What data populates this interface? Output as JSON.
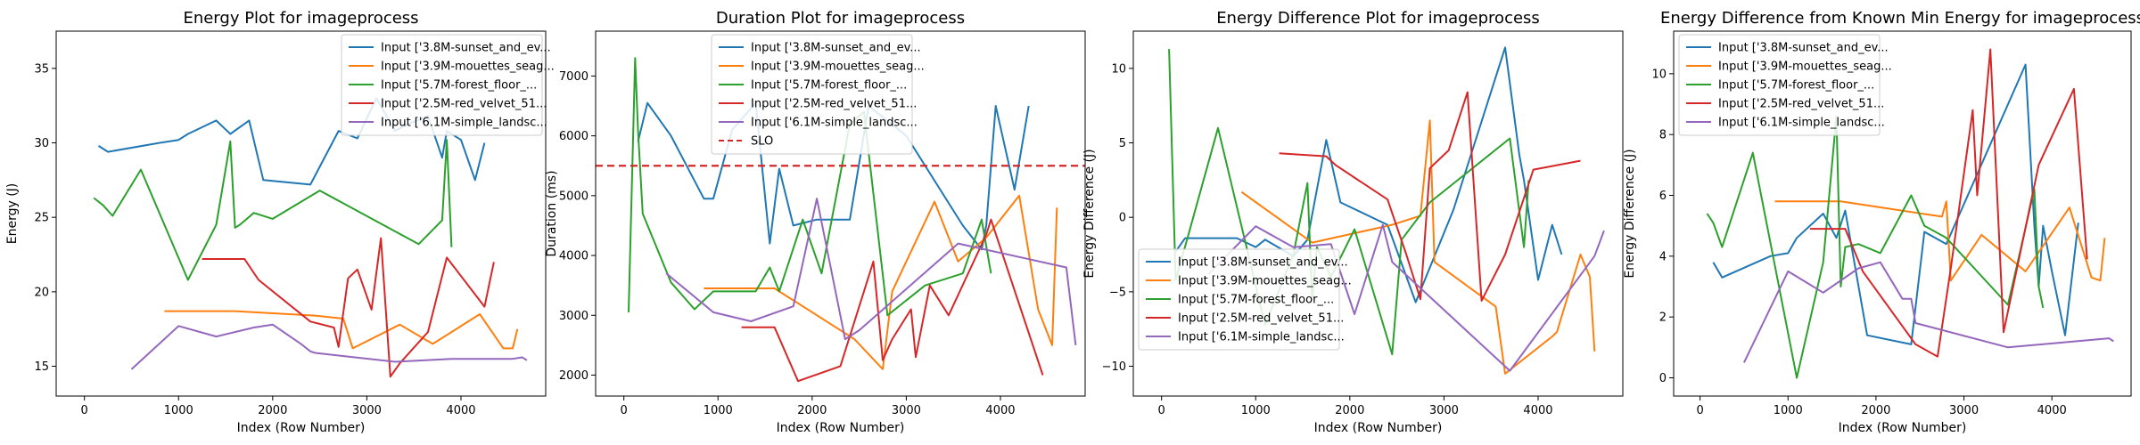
{
  "chart_data": [
    {
      "type": "line",
      "title": "Energy Plot for imageprocess",
      "xlabel": "Index (Row Number)",
      "ylabel": "Energy (J)",
      "xlim": [
        -300,
        4900
      ],
      "ylim": [
        13,
        37.5
      ],
      "xticks": [
        0,
        1000,
        2000,
        3000,
        4000
      ],
      "yticks": [
        15,
        20,
        25,
        30,
        35
      ],
      "legend": "upper-right",
      "series": [
        {
          "name": "Input ['3.8M-sunset_and_ev...",
          "color": "#1f77b4",
          "x": [
            150,
            250,
            800,
            1000,
            1100,
            1400,
            1550,
            1750,
            1900,
            2400,
            2700,
            2900,
            3100,
            3300,
            3450,
            3650,
            3800,
            3850,
            4000,
            4150,
            4250
          ],
          "y": [
            29.8,
            29.4,
            30.0,
            30.2,
            30.6,
            31.5,
            30.6,
            31.5,
            27.5,
            27.2,
            30.8,
            30.3,
            33.0,
            30.8,
            31.3,
            31.8,
            29.0,
            30.8,
            30.2,
            27.5,
            30.0
          ]
        },
        {
          "name": "Input ['3.9M-mouettes_seag...",
          "color": "#ff7f0e",
          "x": [
            850,
            1600,
            2450,
            2750,
            2850,
            3350,
            3700,
            4200,
            4450,
            4550,
            4600
          ],
          "y": [
            18.7,
            18.7,
            18.4,
            18.2,
            16.2,
            17.8,
            16.5,
            18.5,
            16.2,
            16.2,
            17.5
          ]
        },
        {
          "name": "Input ['5.7M-forest_floor_...",
          "color": "#2ca02c",
          "x": [
            100,
            200,
            300,
            600,
            1100,
            1400,
            1550,
            1600,
            1650,
            1800,
            2000,
            2500,
            3550,
            3800,
            3850,
            3900
          ],
          "y": [
            26.3,
            25.8,
            25.1,
            28.2,
            20.8,
            24.5,
            30.1,
            24.3,
            24.5,
            25.3,
            24.9,
            26.8,
            23.2,
            24.8,
            30.2,
            23.0
          ]
        },
        {
          "name": "Input ['2.5M-red_velvet_51...",
          "color": "#d62728",
          "x": [
            1250,
            1700,
            1850,
            2400,
            2650,
            2700,
            2800,
            2900,
            3050,
            3150,
            3250,
            3350,
            3650,
            3850,
            4250,
            4350
          ],
          "y": [
            22.2,
            22.2,
            20.8,
            18.0,
            17.6,
            16.3,
            20.9,
            21.5,
            18.8,
            23.6,
            14.3,
            15.2,
            17.3,
            22.3,
            19.0,
            22.0
          ]
        },
        {
          "name": "Input ['6.1M-simple_landsc...",
          "color": "#9467bd",
          "x": [
            500,
            1000,
            1400,
            1800,
            2000,
            2300,
            2400,
            2450,
            3300,
            3900,
            4550,
            4650,
            4700
          ],
          "y": [
            14.8,
            17.7,
            17.0,
            17.6,
            17.8,
            16.5,
            16.0,
            15.9,
            15.3,
            15.5,
            15.5,
            15.6,
            15.4
          ]
        }
      ]
    },
    {
      "type": "line",
      "title": "Duration Plot for imageprocess",
      "xlabel": "Index (Row Number)",
      "ylabel": "Duration (ms)",
      "xlim": [
        -300,
        4900
      ],
      "ylim": [
        1650,
        7750
      ],
      "xticks": [
        0,
        1000,
        2000,
        3000,
        4000
      ],
      "yticks": [
        2000,
        3000,
        4000,
        5000,
        6000,
        7000
      ],
      "legend": "upper-center",
      "slo": {
        "name": "SLO",
        "value": 5500,
        "color": "#d62728"
      },
      "series": [
        {
          "name": "Input ['3.8M-sunset_and_ev...",
          "color": "#1f77b4",
          "x": [
            150,
            250,
            500,
            850,
            950,
            1150,
            1400,
            1550,
            1650,
            1800,
            2050,
            2400,
            2600,
            3000,
            3600,
            3800,
            3850,
            3950,
            4150,
            4300
          ],
          "y": [
            5900,
            6550,
            6000,
            4950,
            4950,
            6100,
            6550,
            4200,
            5450,
            4500,
            4600,
            4600,
            6500,
            6000,
            4500,
            4100,
            4500,
            6500,
            5100,
            6500
          ]
        },
        {
          "name": "Input ['3.9M-mouettes_seag...",
          "color": "#ff7f0e",
          "x": [
            850,
            1600,
            2250,
            2450,
            2750,
            2850,
            3300,
            3550,
            3850,
            4200,
            4400,
            4550,
            4600
          ],
          "y": [
            3450,
            3450,
            2800,
            2600,
            2100,
            3400,
            4900,
            3900,
            4300,
            5000,
            3100,
            2500,
            4800
          ]
        },
        {
          "name": "Input ['5.7M-forest_floor_...",
          "color": "#2ca02c",
          "x": [
            50,
            120,
            150,
            200,
            500,
            750,
            950,
            1050,
            1400,
            1550,
            1650,
            1900,
            2100,
            2400,
            2550,
            2800,
            3200,
            3600,
            3800,
            3900
          ],
          "y": [
            3050,
            7300,
            6100,
            4700,
            3550,
            3100,
            3400,
            3400,
            3400,
            3800,
            3400,
            4600,
            3700,
            6200,
            6400,
            3000,
            3500,
            3700,
            4600,
            3700
          ]
        },
        {
          "name": "Input ['2.5M-red_velvet_51...",
          "color": "#d62728",
          "x": [
            1250,
            1600,
            1850,
            2300,
            2650,
            2750,
            2850,
            3050,
            3100,
            3250,
            3450,
            3850,
            3900,
            4450
          ],
          "y": [
            2800,
            2800,
            1900,
            2150,
            3900,
            2250,
            2600,
            3100,
            2300,
            3500,
            3000,
            4350,
            4600,
            2000
          ]
        },
        {
          "name": "Input ['6.1M-simple_landsc...",
          "color": "#9467bd",
          "x": [
            450,
            950,
            1350,
            1800,
            2050,
            2350,
            2500,
            3550,
            4700,
            4800
          ],
          "y": [
            3700,
            3050,
            2900,
            3150,
            4950,
            2600,
            2750,
            4200,
            3800,
            2500
          ]
        }
      ]
    },
    {
      "type": "line",
      "title": "Energy Difference Plot for imageprocess",
      "xlabel": "Index (Row Number)",
      "ylabel": "Energy Difference (J)",
      "xlim": [
        -300,
        4900
      ],
      "ylim": [
        -12,
        12.5
      ],
      "xticks": [
        0,
        1000,
        2000,
        3000,
        4000
      ],
      "yticks": [
        -10,
        -5,
        0,
        5,
        10
      ],
      "legend": "lower-left",
      "series": [
        {
          "name": "Input ['3.8M-sunset_and_ev...",
          "color": "#1f77b4",
          "x": [
            150,
            250,
            800,
            1000,
            1100,
            1400,
            1550,
            1750,
            1900,
            2400,
            2700,
            3100,
            3650,
            3800,
            3850,
            4000,
            4150,
            4250
          ],
          "y": [
            -2.3,
            -1.4,
            -1.4,
            -2.0,
            -1.5,
            -2.6,
            -1.5,
            5.2,
            1.0,
            -0.5,
            -5.7,
            0.5,
            11.4,
            4.2,
            2.5,
            -4.2,
            -0.5,
            -2.5
          ]
        },
        {
          "name": "Input ['3.9M-mouettes_seag...",
          "color": "#ff7f0e",
          "x": [
            850,
            1600,
            2450,
            2750,
            2850,
            2900,
            3550,
            3650,
            4150,
            4200,
            4450,
            4550,
            4600
          ],
          "y": [
            1.7,
            -1.7,
            -0.5,
            0.1,
            6.5,
            -3.0,
            -6.0,
            -10.5,
            -8.0,
            -7.7,
            -2.5,
            -4.0,
            -9.0
          ]
        },
        {
          "name": "Input ['5.7M-forest_floor_...",
          "color": "#2ca02c",
          "x": [
            80,
            150,
            280,
            600,
            1100,
            1400,
            1550,
            1600,
            1650,
            1800,
            2050,
            2450,
            2550,
            2850,
            3700,
            3850,
            3900
          ],
          "y": [
            11.3,
            -4.2,
            -1.3,
            6.0,
            -7.2,
            -2.5,
            2.3,
            -5.5,
            -2.0,
            -4.0,
            -0.8,
            -9.2,
            -1.5,
            1.0,
            5.3,
            -2.0,
            2.5
          ]
        },
        {
          "name": "Input ['2.5M-red_velvet_51...",
          "color": "#d62728",
          "x": [
            1250,
            1750,
            1850,
            2400,
            2600,
            2750,
            2850,
            3050,
            3250,
            3400,
            3650,
            3950,
            4450
          ],
          "y": [
            4.3,
            4.1,
            3.5,
            1.2,
            -2.5,
            -5.5,
            3.3,
            4.5,
            8.4,
            -5.6,
            -2.5,
            3.2,
            3.8
          ]
        },
        {
          "name": "Input ['6.1M-simple_landsc...",
          "color": "#9467bd",
          "x": [
            500,
            1000,
            1400,
            1800,
            2050,
            2350,
            2450,
            3700,
            4600,
            4700
          ],
          "y": [
            -3.8,
            -0.6,
            -2.0,
            -1.8,
            -6.5,
            -0.5,
            -3.0,
            -10.3,
            -2.6,
            -0.9
          ]
        }
      ]
    },
    {
      "type": "line",
      "title": "Energy Difference from Known Min Energy for imageprocess",
      "xlabel": "Index (Row Number)",
      "ylabel": "Energy Difference (J)",
      "xlim": [
        -300,
        4900
      ],
      "ylim": [
        -0.6,
        11.4
      ],
      "xticks": [
        0,
        1000,
        2000,
        3000,
        4000
      ],
      "yticks": [
        0,
        2,
        4,
        6,
        8,
        10
      ],
      "legend": "upper-left",
      "series": [
        {
          "name": "Input ['3.8M-sunset_and_ev...",
          "color": "#1f77b4",
          "x": [
            150,
            250,
            800,
            1000,
            1100,
            1400,
            1550,
            1650,
            1900,
            2400,
            2550,
            2800,
            3700,
            3800,
            3850,
            3900,
            4000,
            4150,
            4300
          ],
          "y": [
            3.8,
            3.3,
            4.0,
            4.1,
            4.6,
            5.4,
            4.6,
            5.5,
            1.4,
            1.1,
            4.8,
            4.4,
            10.3,
            5.0,
            3.0,
            5.0,
            3.5,
            1.4,
            5.1
          ]
        },
        {
          "name": "Input ['3.9M-mouettes_seag...",
          "color": "#ff7f0e",
          "x": [
            850,
            1600,
            2750,
            2800,
            2850,
            3200,
            3700,
            4200,
            4450,
            4550,
            4600
          ],
          "y": [
            5.8,
            5.8,
            5.3,
            5.8,
            3.2,
            4.7,
            3.5,
            5.6,
            3.3,
            3.2,
            4.6
          ]
        },
        {
          "name": "Input ['5.7M-forest_floor_...",
          "color": "#2ca02c",
          "x": [
            80,
            150,
            250,
            600,
            1100,
            1400,
            1550,
            1600,
            1650,
            1800,
            2050,
            2400,
            2550,
            2800,
            3500,
            3800,
            3850,
            3900
          ],
          "y": [
            5.4,
            5.1,
            4.3,
            7.4,
            0.0,
            3.8,
            8.6,
            3.0,
            4.3,
            4.4,
            4.1,
            6.0,
            5.0,
            4.6,
            2.4,
            6.2,
            3.0,
            2.3
          ]
        },
        {
          "name": "Input ['2.5M-red_velvet_51...",
          "color": "#d62728",
          "x": [
            1250,
            1650,
            1850,
            2450,
            2700,
            2850,
            3100,
            3150,
            3300,
            3450,
            3850,
            4250,
            4400
          ],
          "y": [
            4.9,
            4.9,
            3.5,
            1.1,
            0.7,
            3.6,
            8.8,
            6.0,
            10.8,
            1.5,
            7.0,
            9.5,
            3.9
          ]
        },
        {
          "name": "Input ['6.1M-simple_landsc...",
          "color": "#9467bd",
          "x": [
            500,
            1000,
            1400,
            1800,
            2050,
            2300,
            2400,
            2450,
            3500,
            4650,
            4700
          ],
          "y": [
            0.5,
            3.5,
            2.8,
            3.6,
            3.8,
            2.6,
            2.6,
            1.8,
            1.0,
            1.3,
            1.2
          ]
        }
      ]
    }
  ]
}
